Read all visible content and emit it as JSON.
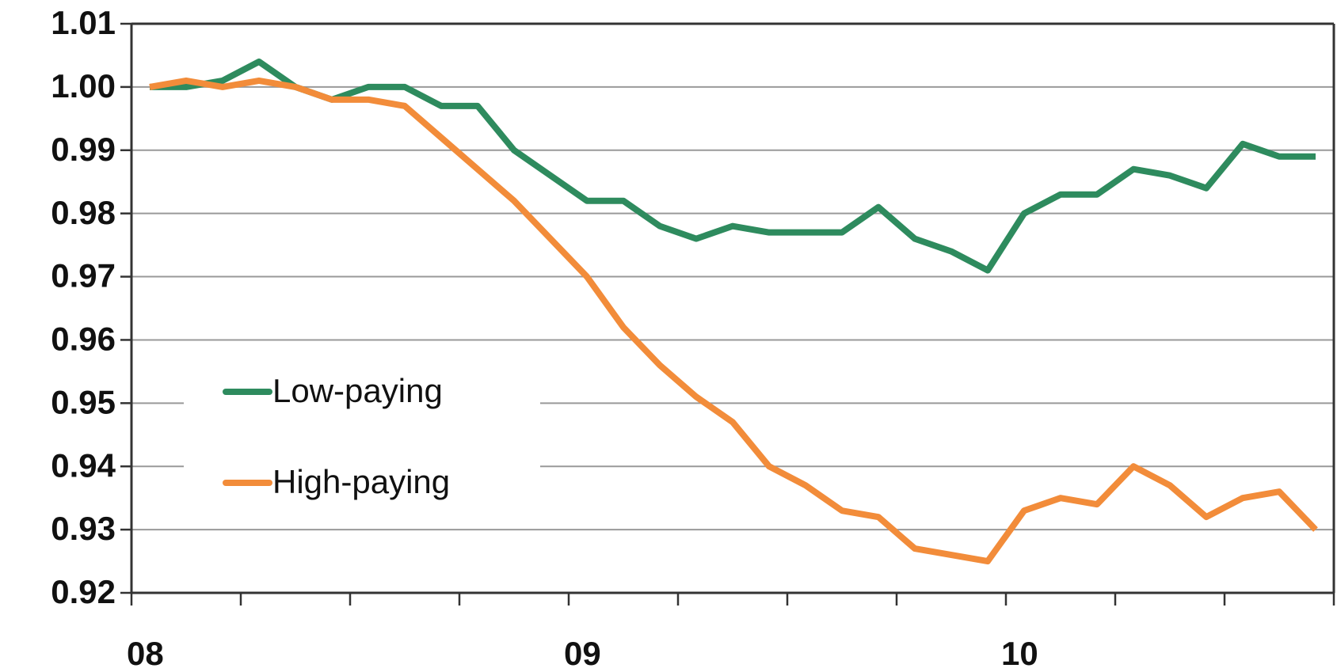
{
  "chart_data": {
    "type": "line",
    "x": [
      0.5,
      1.5,
      2.5,
      3.5,
      4.5,
      5.5,
      6.5,
      7.5,
      8.5,
      9.5,
      10.5,
      11.5,
      12.5,
      13.5,
      14.5,
      15.5,
      16.5,
      17.5,
      18.5,
      19.5,
      20.5,
      21.5,
      22.5,
      23.5,
      24.5,
      25.5,
      26.5,
      27.5,
      28.5,
      29.5,
      30.5,
      31.5,
      32.5
    ],
    "series": [
      {
        "name": "Low-paying",
        "color": "#2e8b5e",
        "values": [
          1.0,
          1.0,
          1.001,
          1.004,
          1.0,
          0.998,
          1.0,
          1.0,
          0.997,
          0.997,
          0.99,
          0.986,
          0.982,
          0.982,
          0.978,
          0.976,
          0.978,
          0.977,
          0.977,
          0.977,
          0.981,
          0.976,
          0.974,
          0.971,
          0.98,
          0.983,
          0.983,
          0.987,
          0.986,
          0.984,
          0.991,
          0.989,
          0.989
        ]
      },
      {
        "name": "High-paying",
        "color": "#f28c3a",
        "values": [
          1.0,
          1.001,
          1.0,
          1.001,
          1.0,
          0.998,
          0.998,
          0.997,
          0.992,
          0.987,
          0.982,
          0.976,
          0.97,
          0.962,
          0.956,
          0.951,
          0.947,
          0.94,
          0.937,
          0.933,
          0.932,
          0.927,
          0.926,
          0.925,
          0.933,
          0.935,
          0.934,
          0.94,
          0.937,
          0.932,
          0.935,
          0.936,
          0.93
        ]
      }
    ],
    "xlim": [
      0,
      33
    ],
    "xticks": [
      {
        "value": 0,
        "label": "08"
      },
      {
        "value": 12,
        "label": "09"
      },
      {
        "value": 24,
        "label": "10"
      }
    ],
    "xminor_ticks": [
      3,
      6,
      9,
      15,
      18,
      21,
      27,
      30,
      33
    ],
    "ylim": [
      0.92,
      1.01
    ],
    "yticks": [
      0.92,
      0.93,
      0.94,
      0.95,
      0.96,
      0.97,
      0.98,
      0.99,
      {
        "value": 1.0,
        "label": "1.00"
      },
      1.01
    ],
    "grid": true,
    "legend": "center-left"
  }
}
